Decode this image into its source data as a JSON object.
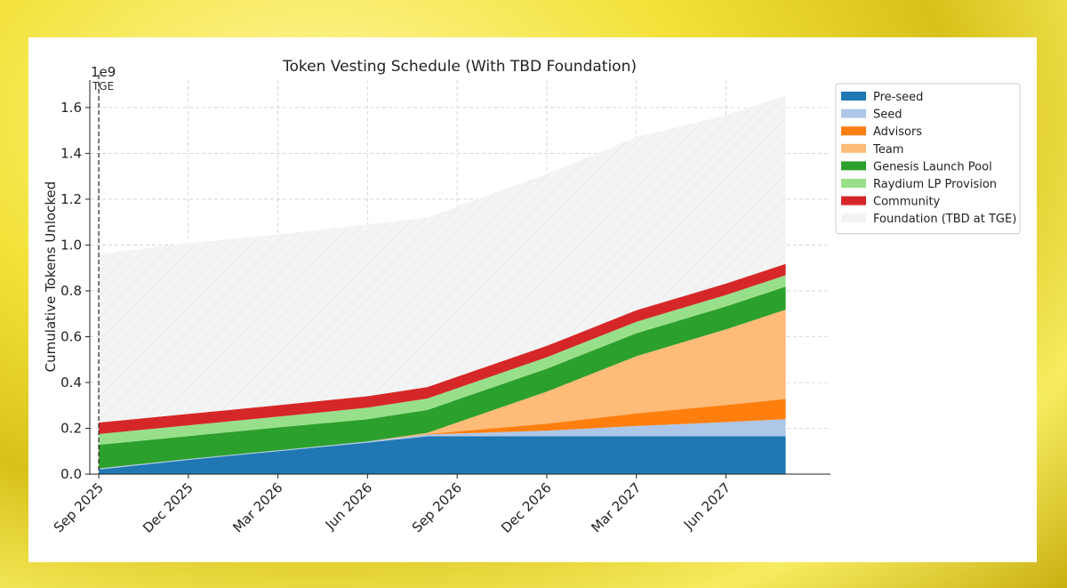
{
  "chart_data": {
    "type": "area",
    "stacked": true,
    "title": "Token Vesting Schedule (With TBD Foundation)",
    "xlabel": "",
    "ylabel": "Cumulative Tokens Unlocked",
    "y_multiplier_label": "1e9",
    "ylim": [
      0,
      1.72
    ],
    "y_ticks": [
      0.0,
      0.2,
      0.4,
      0.6,
      0.8,
      1.0,
      1.2,
      1.4,
      1.6
    ],
    "y_tick_labels": [
      "0.0",
      "0.2",
      "0.4",
      "0.6",
      "0.8",
      "1.0",
      "1.2",
      "1.4",
      "1.6"
    ],
    "x_ticks": [
      "Sep 2025",
      "Dec 2025",
      "Mar 2026",
      "Jun 2026",
      "Sep 2026",
      "Dec 2026",
      "Mar 2027",
      "Jun 2027"
    ],
    "x_tick_months": [
      0,
      3,
      6,
      9,
      12,
      15,
      18,
      21
    ],
    "xlim_months": [
      -0.3,
      24.5
    ],
    "x_months": [
      0,
      3,
      6,
      9,
      11,
      15,
      18,
      21,
      23
    ],
    "grid": true,
    "legend_position": "outside-right",
    "annotation": {
      "label": "TGE",
      "x_month": 0
    },
    "series": [
      {
        "name": "Pre-seed",
        "color": "#1f77b4",
        "values": [
          0.02,
          0.062,
          0.1,
          0.138,
          0.165,
          0.165,
          0.165,
          0.165,
          0.165
        ]
      },
      {
        "name": "Seed",
        "color": "#aec7e8",
        "values": [
          0.005,
          0.004,
          0.004,
          0.005,
          0.008,
          0.025,
          0.045,
          0.062,
          0.075
        ]
      },
      {
        "name": "Advisors",
        "color": "#ff7f0e",
        "values": [
          0.0,
          0.0,
          0.0,
          0.0,
          0.002,
          0.03,
          0.055,
          0.075,
          0.088
        ]
      },
      {
        "name": "Team",
        "color": "#ffbb78",
        "values": [
          0.0,
          0.0,
          0.0,
          0.0,
          0.005,
          0.14,
          0.25,
          0.33,
          0.39
        ]
      },
      {
        "name": "Genesis Launch Pool",
        "color": "#2ca02c",
        "values": [
          0.103,
          0.1,
          0.1,
          0.097,
          0.1,
          0.1,
          0.1,
          0.1,
          0.1
        ]
      },
      {
        "name": "Raydium LP Provision",
        "color": "#98df8a",
        "values": [
          0.047,
          0.047,
          0.047,
          0.05,
          0.05,
          0.05,
          0.05,
          0.05,
          0.05
        ]
      },
      {
        "name": "Community",
        "color": "#d62728",
        "values": [
          0.05,
          0.05,
          0.05,
          0.05,
          0.05,
          0.05,
          0.05,
          0.05,
          0.05
        ]
      },
      {
        "name": "Foundation (TBD at TGE)",
        "color": "#f0f0f0",
        "values": [
          0.735,
          0.745,
          0.745,
          0.75,
          0.74,
          0.75,
          0.755,
          0.735,
          0.735
        ]
      }
    ]
  }
}
